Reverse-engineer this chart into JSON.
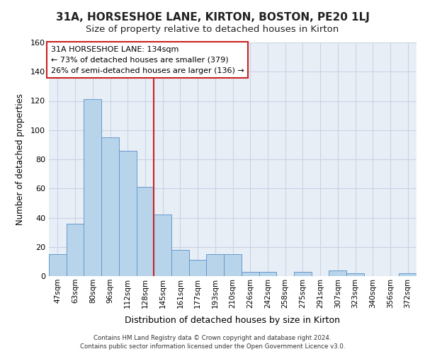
{
  "title_line1": "31A, HORSESHOE LANE, KIRTON, BOSTON, PE20 1LJ",
  "title_line2": "Size of property relative to detached houses in Kirton",
  "xlabel": "Distribution of detached houses by size in Kirton",
  "ylabel": "Number of detached properties",
  "categories": [
    "47sqm",
    "63sqm",
    "80sqm",
    "96sqm",
    "112sqm",
    "128sqm",
    "145sqm",
    "161sqm",
    "177sqm",
    "193sqm",
    "210sqm",
    "226sqm",
    "242sqm",
    "258sqm",
    "275sqm",
    "291sqm",
    "307sqm",
    "323sqm",
    "340sqm",
    "356sqm",
    "372sqm"
  ],
  "values": [
    15,
    36,
    121,
    95,
    86,
    61,
    42,
    18,
    11,
    15,
    15,
    3,
    3,
    0,
    3,
    0,
    4,
    2,
    0,
    0,
    2
  ],
  "bar_color": "#b8d4ea",
  "bar_edge_color": "#6699cc",
  "grid_color": "#c8d4e4",
  "background_color": "#e8eef6",
  "vline_x_index": 5.5,
  "vline_color": "#cc2222",
  "annotation_text": "31A HORSESHOE LANE: 134sqm\n← 73% of detached houses are smaller (379)\n26% of semi-detached houses are larger (136) →",
  "annotation_box_color": "#ffffff",
  "annotation_box_edge_color": "#cc2222",
  "footer_line1": "Contains HM Land Registry data © Crown copyright and database right 2024.",
  "footer_line2": "Contains public sector information licensed under the Open Government Licence v3.0.",
  "ylim": [
    0,
    160
  ],
  "yticks": [
    0,
    20,
    40,
    60,
    80,
    100,
    120,
    140,
    160
  ],
  "fig_width": 6.0,
  "fig_height": 5.0,
  "dpi": 100
}
